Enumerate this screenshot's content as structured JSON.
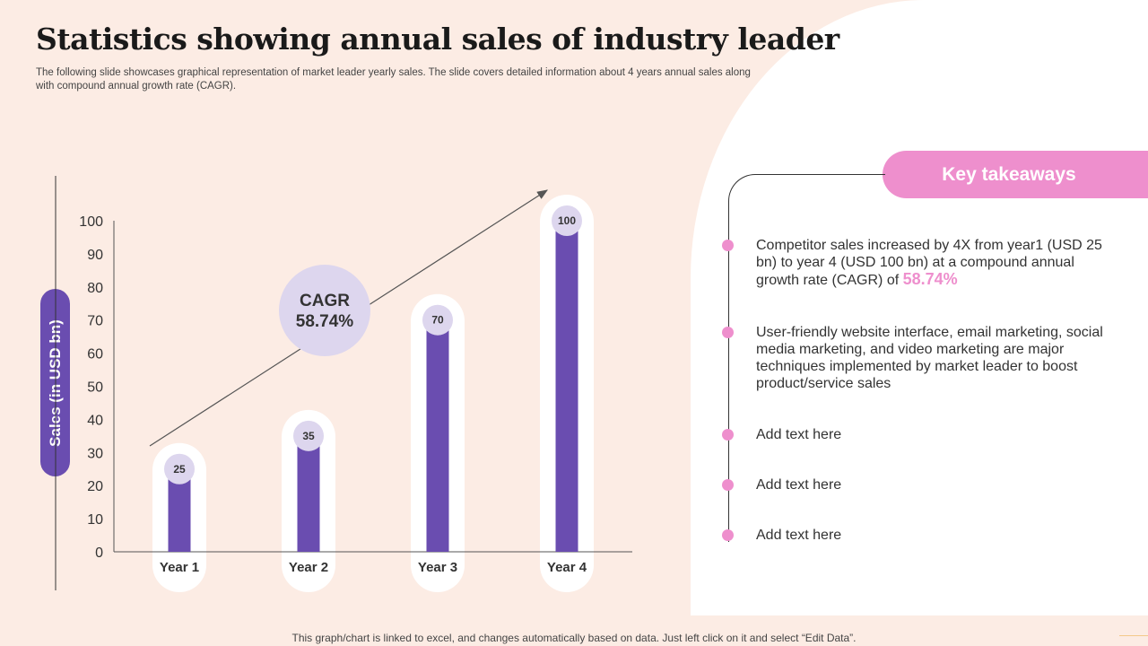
{
  "title": "Statistics showing annual sales of industry leader",
  "subtitle": "The following slide showcases graphical representation of market leader yearly sales. The slide covers detailed information about 4 years annual sales along with compound annual growth rate (CAGR).",
  "colors": {
    "background": "#fcece4",
    "bar": "#6a4db0",
    "accent_pink": "#ee8fcd",
    "label_circle": "#ddd6ee"
  },
  "chart_data": {
    "type": "bar",
    "categories": [
      "Year 1",
      "Year 2",
      "Year 3",
      "Year 4"
    ],
    "values": [
      25,
      35,
      70,
      100
    ],
    "ylabel": "Sales (in USD bn)",
    "ylim": [
      0,
      100
    ],
    "yticks": [
      "0",
      "10",
      "20",
      "30",
      "40",
      "50",
      "60",
      "70",
      "80",
      "90",
      "100"
    ],
    "cagr_label": "CAGR",
    "cagr_value": "58.74%",
    "grid": false
  },
  "takeaways": {
    "heading": "Key takeaways",
    "item1_text": "Competitor sales increased by 4X from year1 (USD 25 bn) to year 4 (USD 100 bn) at a compound annual growth rate (CAGR) of ",
    "item1_highlight": "58.74%",
    "item2": "User-friendly  website interface, email marketing, social media marketing, and video marketing are major techniques implemented by market leader to boost product/service  sales",
    "item3": "Add text here",
    "item4": "Add text here",
    "item5": "Add text here"
  },
  "footer": "This graph/chart is linked to excel,  and changes automatically based on data. Just left click on it and select “Edit Data”."
}
